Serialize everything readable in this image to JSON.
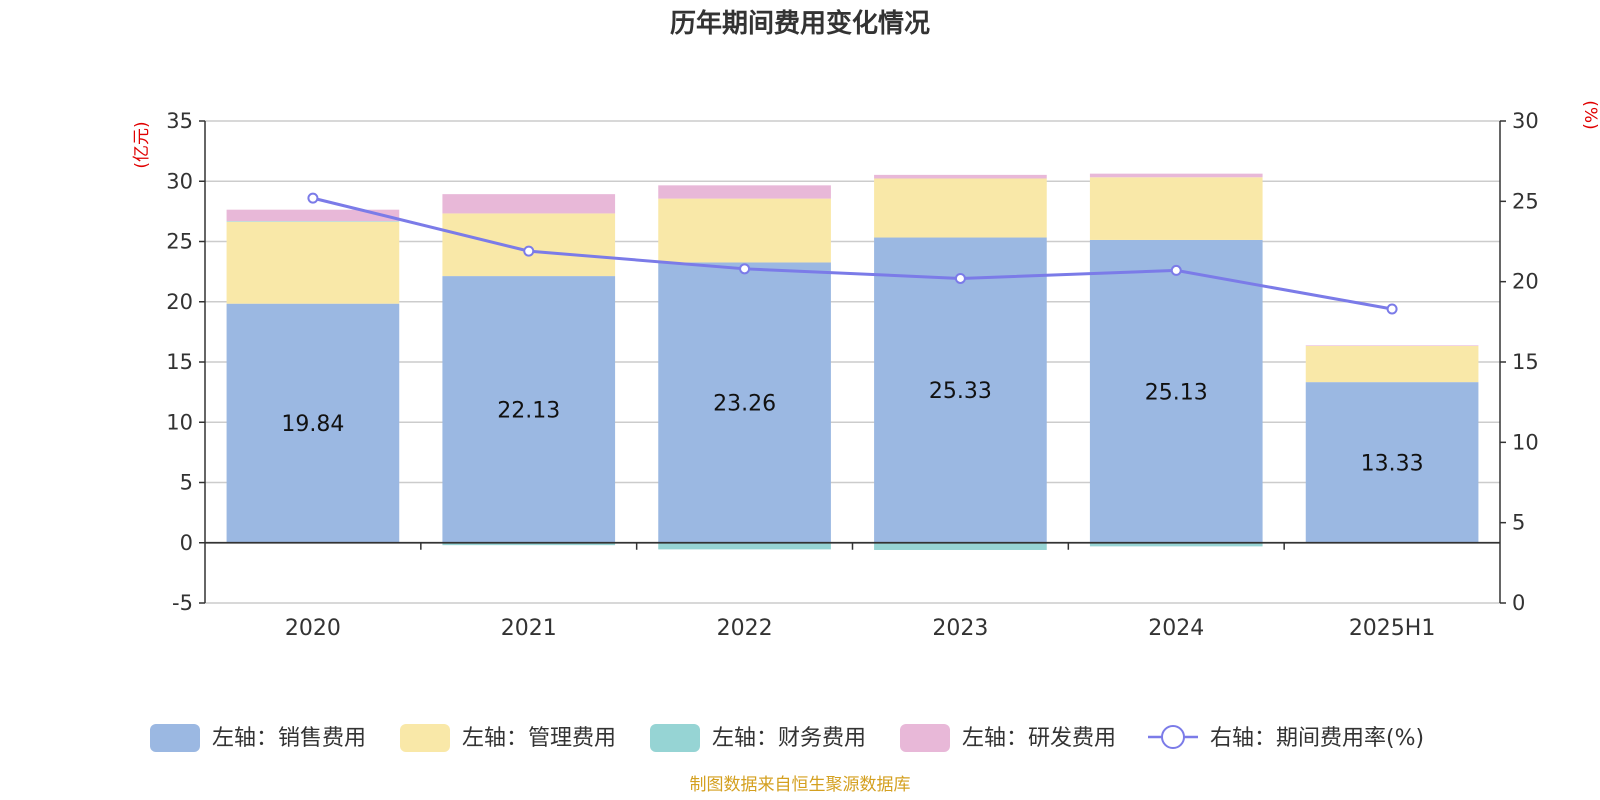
{
  "chart_data": {
    "type": "bar",
    "stacked": true,
    "title": "历年期间费用变化情况",
    "categories": [
      "2020",
      "2021",
      "2022",
      "2023",
      "2024",
      "2025H1"
    ],
    "left_axis": {
      "unit": "(亿元)",
      "ylim": [
        -5,
        35
      ],
      "ticks": [
        -5,
        0,
        5,
        10,
        15,
        20,
        25,
        30,
        35
      ]
    },
    "right_axis": {
      "unit": "(%)",
      "ylim": [
        0,
        30
      ],
      "ticks": [
        0,
        5,
        10,
        15,
        20,
        25,
        30
      ]
    },
    "series": [
      {
        "name": "左轴：销售费用",
        "type": "bar",
        "axis": "left",
        "color": "#9bb8e2",
        "values": [
          19.84,
          22.13,
          23.26,
          25.33,
          25.13,
          13.33
        ],
        "labels_shown": true
      },
      {
        "name": "左轴：管理费用",
        "type": "bar",
        "axis": "left",
        "color": "#f9e8a8",
        "values": [
          6.8,
          5.2,
          5.3,
          4.9,
          5.2,
          3.0
        ]
      },
      {
        "name": "左轴：财务费用",
        "type": "bar",
        "axis": "left",
        "color": "#96d4d4",
        "values": [
          0.05,
          -0.2,
          -0.55,
          -0.6,
          -0.3,
          0.0
        ]
      },
      {
        "name": "左轴：研发费用",
        "type": "bar",
        "axis": "left",
        "color": "#e8b8d8",
        "values": [
          0.95,
          1.6,
          1.1,
          0.3,
          0.3,
          0.05
        ]
      },
      {
        "name": "右轴：期间费用率(%)",
        "type": "line",
        "axis": "right",
        "color": "#7b7be8",
        "values": [
          25.2,
          21.9,
          20.8,
          20.2,
          20.7,
          18.3
        ]
      }
    ],
    "grid": true,
    "legend_position": "bottom"
  },
  "source_text": "制图数据来自恒生聚源数据库"
}
